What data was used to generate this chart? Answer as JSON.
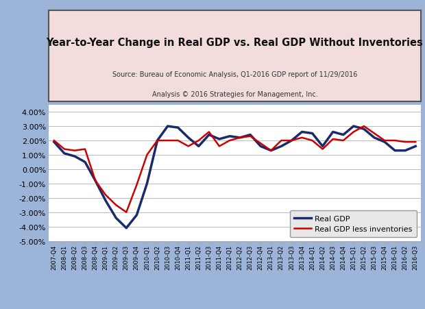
{
  "title": "Year-to-Year Change in Real GDP vs. Real GDP Without Inventories",
  "subtitle1": "Source: Bureau of Economic Analysis, Q1-2016 GDP report of 11/29/2016",
  "subtitle2": "Analysis © 2016 Strategies for Management, Inc.",
  "background_outer": "#9cb4d8",
  "background_inner": "#ffffff",
  "title_box_color": "#f2dcdc",
  "ylim": [
    -0.05,
    0.045
  ],
  "yticks": [
    -0.05,
    -0.04,
    -0.03,
    -0.02,
    -0.01,
    0.0,
    0.01,
    0.02,
    0.03,
    0.04
  ],
  "labels": [
    "2007-Q4",
    "2008-Q1",
    "2008-Q2",
    "2008-Q3",
    "2008-Q4",
    "2009-Q1",
    "2009-Q2",
    "2009-Q3",
    "2009-Q4",
    "2010-Q1",
    "2010-Q2",
    "2010-Q3",
    "2010-Q4",
    "2011-Q1",
    "2011-Q2",
    "2011-Q3",
    "2011-Q4",
    "2012-Q1",
    "2012-Q2",
    "2012-Q3",
    "2012-Q4",
    "2013-Q1",
    "2013-Q2",
    "2013-Q3",
    "2013-Q4",
    "2014-Q1",
    "2014-Q2",
    "2014-Q3",
    "2014-Q4",
    "2015-Q1",
    "2015-Q2",
    "2015-Q3",
    "2015-Q4",
    "2016-Q1",
    "2016-Q2",
    "2016-Q3"
  ],
  "real_gdp": [
    0.019,
    0.011,
    0.009,
    0.005,
    -0.008,
    -0.022,
    -0.034,
    -0.041,
    -0.032,
    -0.01,
    0.02,
    0.03,
    0.029,
    0.022,
    0.016,
    0.024,
    0.021,
    0.023,
    0.022,
    0.024,
    0.016,
    0.013,
    0.016,
    0.02,
    0.026,
    0.025,
    0.016,
    0.026,
    0.024,
    0.03,
    0.028,
    0.022,
    0.019,
    0.013,
    0.013,
    0.016
  ],
  "real_gdp_less_inv": [
    0.02,
    0.014,
    0.013,
    0.014,
    -0.008,
    -0.018,
    -0.025,
    -0.03,
    -0.011,
    0.01,
    0.02,
    0.02,
    0.02,
    0.016,
    0.02,
    0.026,
    0.016,
    0.02,
    0.022,
    0.023,
    0.018,
    0.013,
    0.02,
    0.02,
    0.022,
    0.02,
    0.014,
    0.021,
    0.02,
    0.026,
    0.03,
    0.025,
    0.02,
    0.02,
    0.019,
    0.019
  ],
  "gdp_color": "#1a2b6b",
  "inv_color": "#cc0000",
  "gdp_linewidth": 2.5,
  "inv_linewidth": 1.8
}
